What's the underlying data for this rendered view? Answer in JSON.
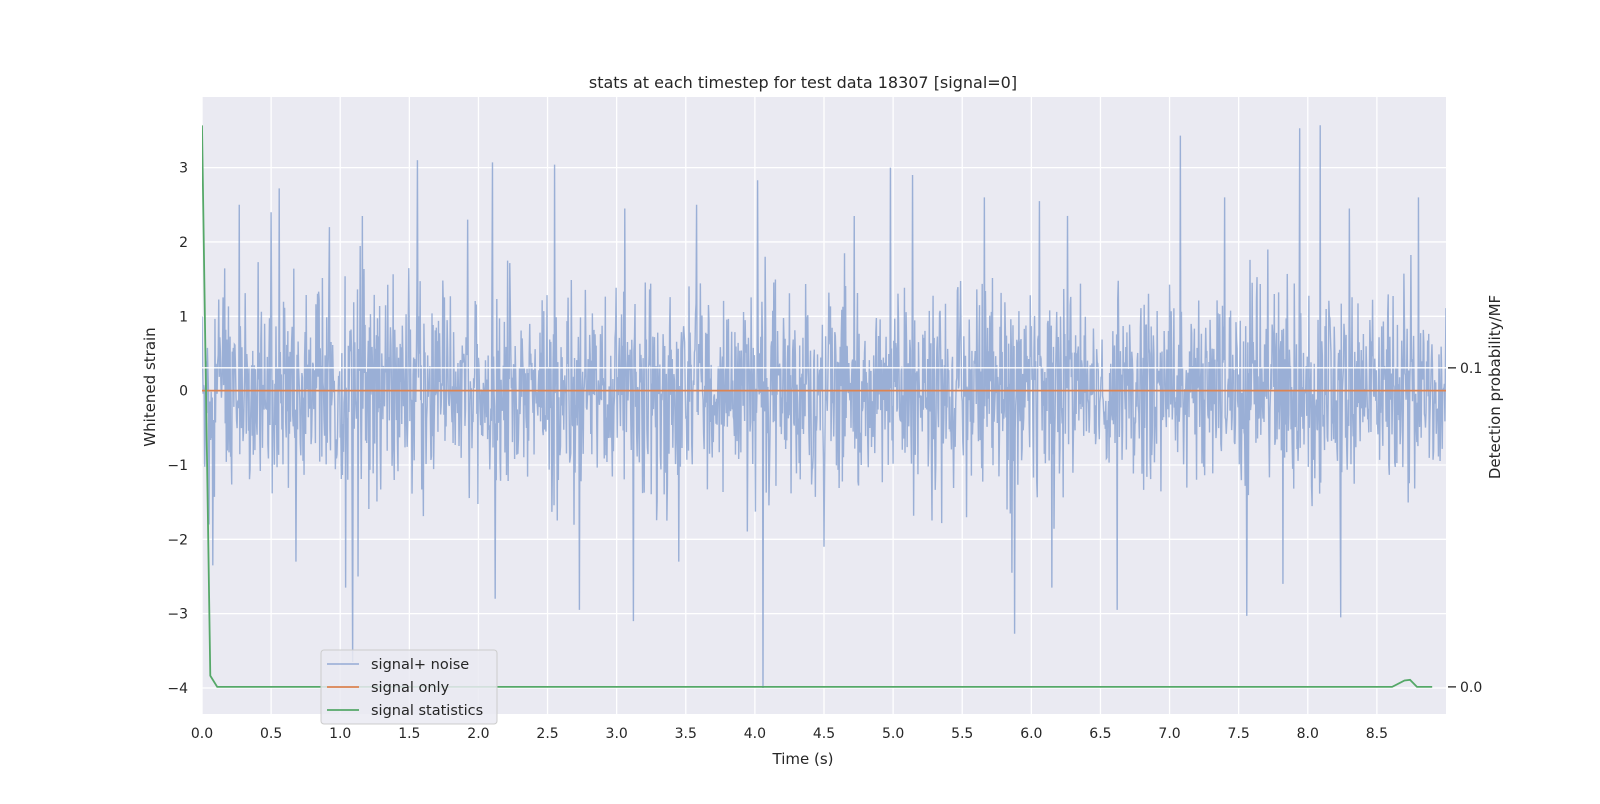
{
  "chart_data": {
    "type": "line",
    "title": "stats at each timestep for test data 18307 [signal=0]",
    "xlabel": "Time (s)",
    "ylabel": "Whitened strain",
    "y2label": "Detection probability/MF",
    "xlim": [
      0.0,
      9.0
    ],
    "ylim": [
      -4.35,
      3.95
    ],
    "y2lim": [
      -0.0085,
      0.1849
    ],
    "x_ticks": [
      0.0,
      0.5,
      1.0,
      1.5,
      2.0,
      2.5,
      3.0,
      3.5,
      4.0,
      4.5,
      5.0,
      5.5,
      6.0,
      6.5,
      7.0,
      7.5,
      8.0,
      8.5
    ],
    "x_tick_labels": [
      "0.0",
      "0.5",
      "1.0",
      "1.5",
      "2.0",
      "2.5",
      "3.0",
      "3.5",
      "4.0",
      "4.5",
      "5.0",
      "5.5",
      "6.0",
      "6.5",
      "7.0",
      "7.5",
      "8.0",
      "8.5"
    ],
    "y_ticks": [
      3,
      2,
      1,
      0,
      -1,
      -2,
      -3,
      -4
    ],
    "y_tick_labels": [
      "3",
      "2",
      "1",
      "0",
      "−1",
      "−2",
      "−3",
      "−4"
    ],
    "y2_ticks": [
      0.1,
      0.0
    ],
    "y2_tick_labels": [
      "0.1",
      "0.0"
    ],
    "grid": true,
    "legend_position": "lower-left",
    "series": [
      {
        "name": "signal+ noise",
        "color": "#7f9bcc",
        "axis": "left",
        "style": "noise",
        "sample_rate": 256,
        "band_low": -1.05,
        "band_high": 1.1,
        "spikes": [
          {
            "x": 0.05,
            "y": -1.8
          },
          {
            "x": 0.08,
            "y": -2.35
          },
          {
            "x": 0.27,
            "y": 2.5
          },
          {
            "x": 0.5,
            "y": 2.4
          },
          {
            "x": 0.56,
            "y": 2.72
          },
          {
            "x": 0.68,
            "y": -2.3
          },
          {
            "x": 0.92,
            "y": 2.2
          },
          {
            "x": 1.04,
            "y": -2.65
          },
          {
            "x": 1.09,
            "y": -3.65
          },
          {
            "x": 1.13,
            "y": -2.5
          },
          {
            "x": 1.16,
            "y": 2.35
          },
          {
            "x": 1.56,
            "y": 3.1
          },
          {
            "x": 1.92,
            "y": 2.3
          },
          {
            "x": 2.1,
            "y": 3.07
          },
          {
            "x": 2.12,
            "y": -2.8
          },
          {
            "x": 2.55,
            "y": 3.04
          },
          {
            "x": 2.73,
            "y": -2.95
          },
          {
            "x": 3.06,
            "y": 2.45
          },
          {
            "x": 3.12,
            "y": -3.1
          },
          {
            "x": 3.45,
            "y": -2.3
          },
          {
            "x": 3.58,
            "y": 2.5
          },
          {
            "x": 4.02,
            "y": 2.83
          },
          {
            "x": 4.06,
            "y": -4.0
          },
          {
            "x": 4.5,
            "y": -2.1
          },
          {
            "x": 4.72,
            "y": 2.35
          },
          {
            "x": 4.98,
            "y": 3.0
          },
          {
            "x": 5.14,
            "y": 2.9
          },
          {
            "x": 5.66,
            "y": 2.6
          },
          {
            "x": 5.86,
            "y": -2.45
          },
          {
            "x": 5.88,
            "y": -3.27
          },
          {
            "x": 6.06,
            "y": 2.55
          },
          {
            "x": 6.15,
            "y": -2.65
          },
          {
            "x": 6.26,
            "y": 2.35
          },
          {
            "x": 6.62,
            "y": -2.95
          },
          {
            "x": 7.08,
            "y": 3.43
          },
          {
            "x": 7.4,
            "y": 2.6
          },
          {
            "x": 7.56,
            "y": -3.03
          },
          {
            "x": 7.82,
            "y": -2.6
          },
          {
            "x": 7.94,
            "y": 3.53
          },
          {
            "x": 8.09,
            "y": 3.57
          },
          {
            "x": 8.24,
            "y": -3.05
          },
          {
            "x": 8.3,
            "y": 2.45
          },
          {
            "x": 8.8,
            "y": 2.6
          }
        ]
      },
      {
        "name": "signal only",
        "color": "#dd8452",
        "axis": "left",
        "style": "flat",
        "x": [
          0.0,
          9.0
        ],
        "y": [
          0.0,
          0.0
        ]
      },
      {
        "name": "signal statistics",
        "color": "#55a868",
        "axis": "right",
        "style": "line",
        "x": [
          0.0,
          0.06,
          0.11,
          0.2,
          1.0,
          2.0,
          3.0,
          4.0,
          5.0,
          6.0,
          7.0,
          8.0,
          8.61,
          8.7,
          8.74,
          8.79,
          8.83,
          8.9
        ],
        "y": [
          0.176,
          0.0035,
          0.0,
          0.0,
          0.0,
          0.0,
          0.0,
          0.0,
          0.0,
          0.0,
          0.0,
          0.0,
          0.0,
          0.002,
          0.0022,
          0.0,
          0.0,
          0.0
        ]
      }
    ]
  }
}
